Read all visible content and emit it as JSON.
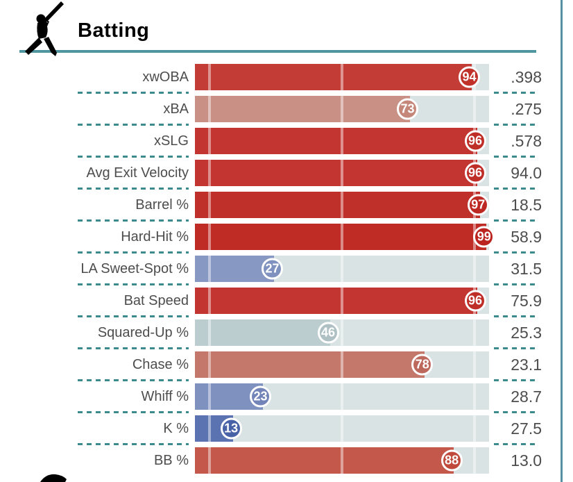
{
  "header": {
    "title": "Batting",
    "icon": "batter-silhouette",
    "rule_color": "#4f96a0"
  },
  "panel": {
    "divider_color": "#5591a1",
    "separator_color": "#3a8a8e",
    "track_color": "#d9e3e3",
    "label_color": "#4d4d4d",
    "value_color": "#4d4d4d"
  },
  "chart_data": {
    "type": "bar",
    "title": "Batting",
    "orientation": "horizontal",
    "categories": [
      "xwOBA",
      "xBA",
      "xSLG",
      "Avg Exit Velocity",
      "Barrel %",
      "Hard-Hit %",
      "LA Sweet-Spot %",
      "Bat Speed",
      "Squared-Up %",
      "Chase %",
      "Whiff %",
      "K %",
      "BB %"
    ],
    "series": [
      {
        "name": "Percentile",
        "values": [
          94,
          73,
          96,
          96,
          97,
          99,
          27,
          96,
          46,
          78,
          23,
          13,
          88
        ]
      },
      {
        "name": "Stat Value",
        "values": [
          ".398",
          ".275",
          ".578",
          "94.0",
          "18.5",
          "58.9",
          "31.5",
          "75.9",
          "25.3",
          "23.1",
          "28.7",
          "27.5",
          "13.0"
        ]
      }
    ],
    "xlim": [
      0,
      100
    ],
    "grid_markers_pct": [
      5,
      50,
      95
    ],
    "legend_position": "none",
    "color_scale": "blue(low) - gray(mid) - red(high)"
  },
  "rows": [
    {
      "label": "xwOBA",
      "percentile": 94,
      "value": ".398",
      "fill_color": "#c33d36",
      "bubble_color": "#c03129"
    },
    {
      "label": "xBA",
      "percentile": 73,
      "value": ".275",
      "fill_color": "#c99186",
      "bubble_color": "#c48779"
    },
    {
      "label": "xSLG",
      "percentile": 96,
      "value": ".578",
      "fill_color": "#c23530",
      "bubble_color": "#bf2d27"
    },
    {
      "label": "Avg Exit Velocity",
      "percentile": 96,
      "value": "94.0",
      "fill_color": "#c23530",
      "bubble_color": "#bf2d27"
    },
    {
      "label": "Barrel %",
      "percentile": 97,
      "value": "18.5",
      "fill_color": "#c0302a",
      "bubble_color": "#bd2822"
    },
    {
      "label": "Hard-Hit %",
      "percentile": 99,
      "value": "58.9",
      "fill_color": "#bf2b25",
      "bubble_color": "#bb231e"
    },
    {
      "label": "LA Sweet-Spot %",
      "percentile": 27,
      "value": "31.5",
      "fill_color": "#8798c3",
      "bubble_color": "#7f92bf"
    },
    {
      "label": "Bat Speed",
      "percentile": 96,
      "value": "75.9",
      "fill_color": "#c23530",
      "bubble_color": "#bf2d27"
    },
    {
      "label": "Squared-Up %",
      "percentile": 46,
      "value": "25.3",
      "fill_color": "#bccdd0",
      "bubble_color": "#aec0c4"
    },
    {
      "label": "Chase %",
      "percentile": 78,
      "value": "23.1",
      "fill_color": "#c4776b",
      "bubble_color": "#bd685c"
    },
    {
      "label": "Whiff %",
      "percentile": 23,
      "value": "28.7",
      "fill_color": "#7e91bf",
      "bubble_color": "#7385b8"
    },
    {
      "label": "K %",
      "percentile": 13,
      "value": "27.5",
      "fill_color": "#5c73b1",
      "bubble_color": "#4862a7"
    },
    {
      "label": "BB %",
      "percentile": 88,
      "value": "13.0",
      "fill_color": "#c4584a",
      "bubble_color": "#bf4a3c"
    }
  ]
}
